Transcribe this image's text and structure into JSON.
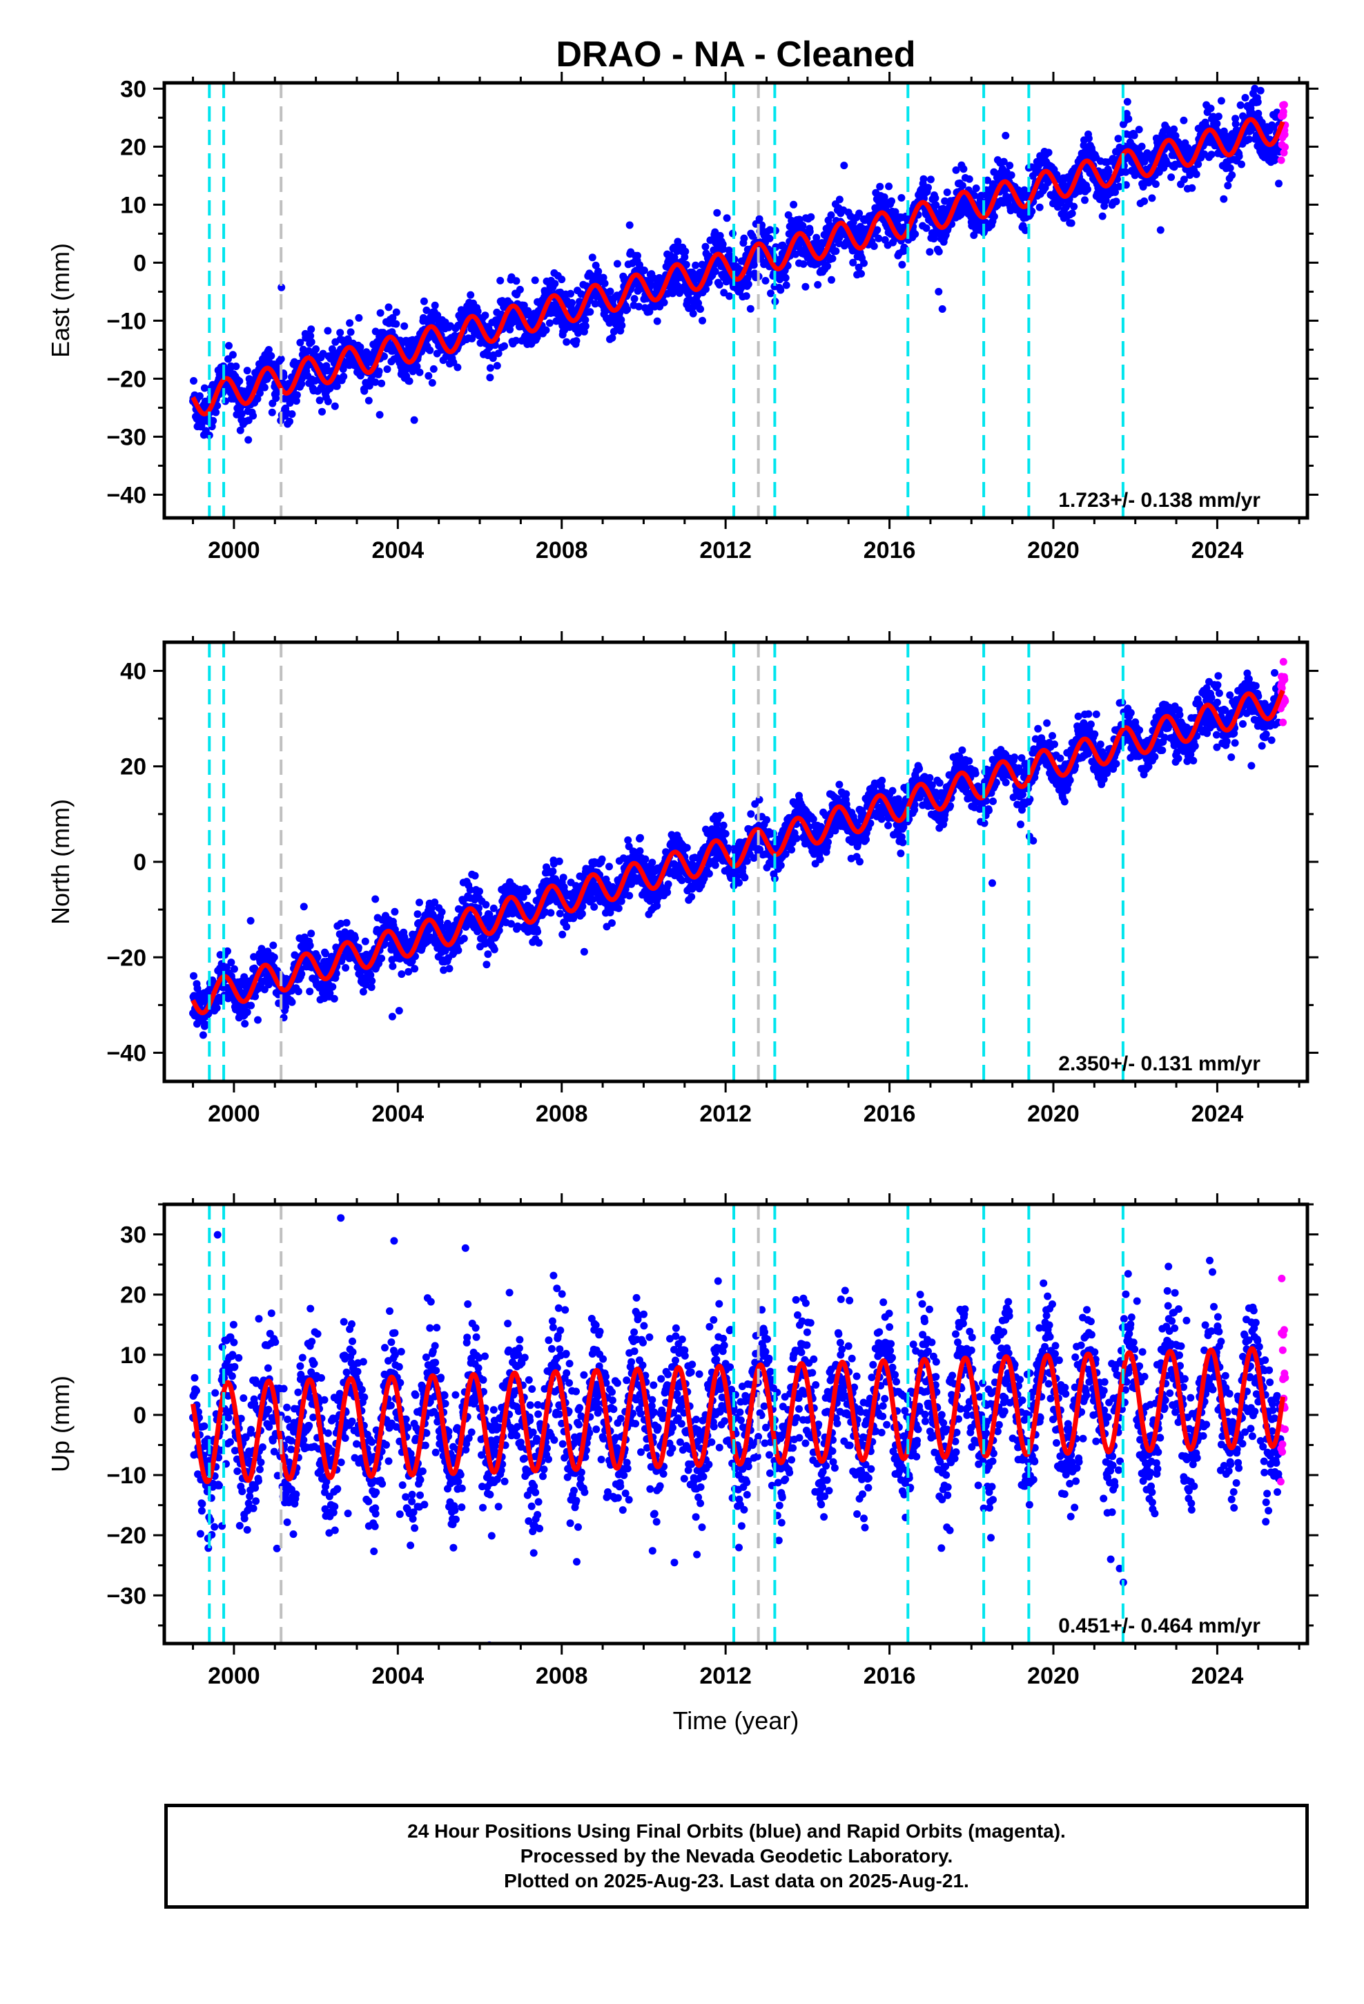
{
  "title": "DRAO  - NA - Cleaned",
  "colors": {
    "final_orbits": "#0000ff",
    "rapid_orbits": "#ff00ff",
    "model": "#ff0000",
    "equipment_change": "#00e5ee",
    "other_event": "#c0c0c0"
  },
  "footer": {
    "line1": "24 Hour Positions Using Final Orbits (blue) and Rapid Orbits (magenta).",
    "line2": "Processed by the Nevada Geodetic Laboratory.",
    "line3": "Plotted on 2025-Aug-23. Last data on 2025-Aug-21."
  },
  "chart_data": [
    {
      "type": "scatter",
      "component": "East",
      "ylabel": "East (mm)",
      "xlabel": "",
      "xlim": [
        1998.3,
        2026.2
      ],
      "ylim": [
        -44,
        31
      ],
      "xticks": [
        2000,
        2004,
        2008,
        2012,
        2016,
        2020,
        2024
      ],
      "yticks": [
        -40,
        -30,
        -20,
        -10,
        0,
        10,
        20,
        30
      ],
      "rate": "1.723+/- 0.138 mm/yr",
      "model": {
        "start": 1999.0,
        "end": 2025.6,
        "value_start": -24,
        "value_end": 23.5,
        "annual_amplitude": 2.6,
        "phase_year": 0.55
      },
      "scatter_spread": 2.2,
      "equipment_changes": [
        1999.4,
        1999.75,
        2012.2,
        2013.2,
        2016.45,
        2018.3,
        2019.4,
        2021.7
      ],
      "other_events": [
        2001.15,
        2012.8
      ],
      "grid": false
    },
    {
      "type": "scatter",
      "component": "North",
      "ylabel": "North (mm)",
      "xlabel": "",
      "xlim": [
        1998.3,
        2026.2
      ],
      "ylim": [
        -46,
        46
      ],
      "xticks": [
        2000,
        2004,
        2008,
        2012,
        2016,
        2020,
        2024
      ],
      "yticks": [
        -40,
        -20,
        0,
        20,
        40
      ],
      "rate": "2.350+/- 0.131 mm/yr",
      "model": {
        "start": 1999.0,
        "end": 2025.6,
        "value_start": -29,
        "value_end": 34,
        "annual_amplitude": 3.2,
        "phase_year": 0.5
      },
      "scatter_spread": 2.4,
      "equipment_changes": [
        1999.4,
        1999.75,
        2012.2,
        2013.2,
        2016.45,
        2018.3,
        2019.4,
        2021.7
      ],
      "other_events": [
        2001.15,
        2012.8
      ],
      "grid": false
    },
    {
      "type": "scatter",
      "component": "Up",
      "ylabel": "Up (mm)",
      "xlabel": "Time (year)",
      "xlim": [
        1998.3,
        2026.2
      ],
      "ylim": [
        -38,
        35
      ],
      "xticks": [
        2000,
        2004,
        2008,
        2012,
        2016,
        2020,
        2024
      ],
      "yticks": [
        -30,
        -20,
        -10,
        0,
        10,
        20,
        30
      ],
      "rate": "0.451+/- 0.464 mm/yr",
      "model": {
        "start": 1999.0,
        "end": 2025.6,
        "value_start": -3,
        "value_end": 3,
        "annual_amplitude": 8.2,
        "phase_year": 0.6
      },
      "scatter_spread": 5.5,
      "equipment_changes": [
        1999.4,
        1999.75,
        2012.2,
        2013.2,
        2016.45,
        2018.3,
        2019.4,
        2021.7
      ],
      "other_events": [
        2001.15,
        2012.8
      ],
      "grid": false
    }
  ]
}
